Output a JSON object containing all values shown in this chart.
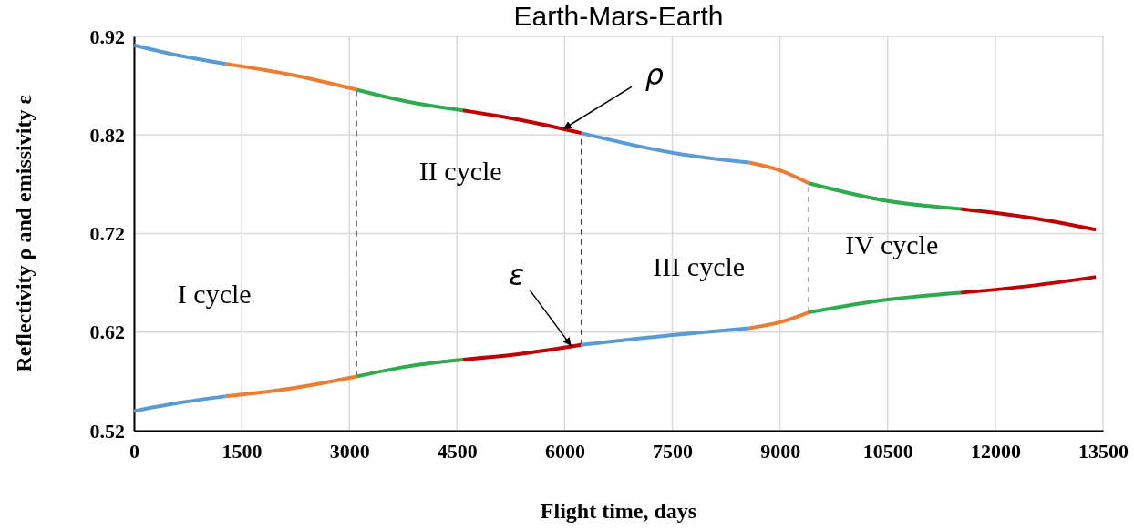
{
  "chart_data": {
    "type": "line",
    "title": "Earth-Mars-Earth",
    "xlabel": "Flight  time, days",
    "ylabel": "Reflectivity ρ and emissivity ε",
    "xlim": [
      0,
      13500
    ],
    "xticks": [
      0,
      1500,
      3000,
      4500,
      6000,
      7500,
      9000,
      10500,
      12000,
      13500
    ],
    "ylim": [
      0.52,
      0.92
    ],
    "yticks": [
      0.52,
      0.62,
      0.72,
      0.82,
      0.92
    ],
    "grid": true,
    "marker": "none",
    "line_style": "solid",
    "series": [
      {
        "color": "#5b9bd5",
        "x": [
          0,
          600,
          1280
        ],
        "values": [
          0.911,
          0.901,
          0.892
        ]
      },
      {
        "color": "#ed7d31",
        "x": [
          1280,
          2200,
          3100
        ],
        "values": [
          0.892,
          0.881,
          0.866
        ]
      },
      {
        "color": "#2eaa4f",
        "x": [
          3100,
          3800,
          4580
        ],
        "values": [
          0.866,
          0.854,
          0.845
        ]
      },
      {
        "color": "#c00000",
        "x": [
          4580,
          5400,
          6230
        ],
        "values": [
          0.845,
          0.835,
          0.822
        ]
      },
      {
        "color": "#5b9bd5",
        "x": [
          6230,
          7500,
          8570
        ],
        "values": [
          0.822,
          0.802,
          0.792
        ]
      },
      {
        "color": "#ed7d31",
        "x": [
          8570,
          9000,
          9400
        ],
        "values": [
          0.792,
          0.784,
          0.771
        ]
      },
      {
        "color": "#2eaa4f",
        "x": [
          9400,
          10500,
          11520
        ],
        "values": [
          0.771,
          0.753,
          0.745
        ]
      },
      {
        "color": "#c00000",
        "x": [
          11520,
          12500,
          13400
        ],
        "values": [
          0.745,
          0.736,
          0.724
        ]
      },
      {
        "color": "#5b9bd5",
        "x": [
          0,
          600,
          1280
        ],
        "values": [
          0.54,
          0.548,
          0.555
        ]
      },
      {
        "color": "#ed7d31",
        "x": [
          1280,
          2200,
          3100
        ],
        "values": [
          0.555,
          0.563,
          0.575
        ]
      },
      {
        "color": "#2eaa4f",
        "x": [
          3100,
          3800,
          4580
        ],
        "values": [
          0.575,
          0.585,
          0.592
        ]
      },
      {
        "color": "#c00000",
        "x": [
          4580,
          5400,
          6230
        ],
        "values": [
          0.592,
          0.598,
          0.607
        ]
      },
      {
        "color": "#5b9bd5",
        "x": [
          6230,
          7500,
          8570
        ],
        "values": [
          0.607,
          0.617,
          0.624
        ]
      },
      {
        "color": "#ed7d31",
        "x": [
          8570,
          9000,
          9400
        ],
        "values": [
          0.624,
          0.63,
          0.64
        ]
      },
      {
        "color": "#2eaa4f",
        "x": [
          9400,
          10500,
          11520
        ],
        "values": [
          0.64,
          0.653,
          0.66
        ]
      },
      {
        "color": "#c00000",
        "x": [
          11520,
          12500,
          13400
        ],
        "values": [
          0.66,
          0.667,
          0.676
        ]
      }
    ],
    "ref_lines": [
      {
        "axis": "x",
        "value": 3100,
        "color": "#404040",
        "line_style": "dashed"
      },
      {
        "axis": "x",
        "value": 6230,
        "color": "#404040",
        "line_style": "dashed"
      },
      {
        "axis": "x",
        "value": 9400,
        "color": "#404040",
        "line_style": "dashed"
      }
    ],
    "annotations": [
      "I cycle",
      "II cycle",
      "III cycle",
      "IV cycle",
      {
        "text": "ρ",
        "x": 5980,
        "y": 0.826
      },
      {
        "text": "ε",
        "x": 6090,
        "y": 0.606
      }
    ]
  }
}
